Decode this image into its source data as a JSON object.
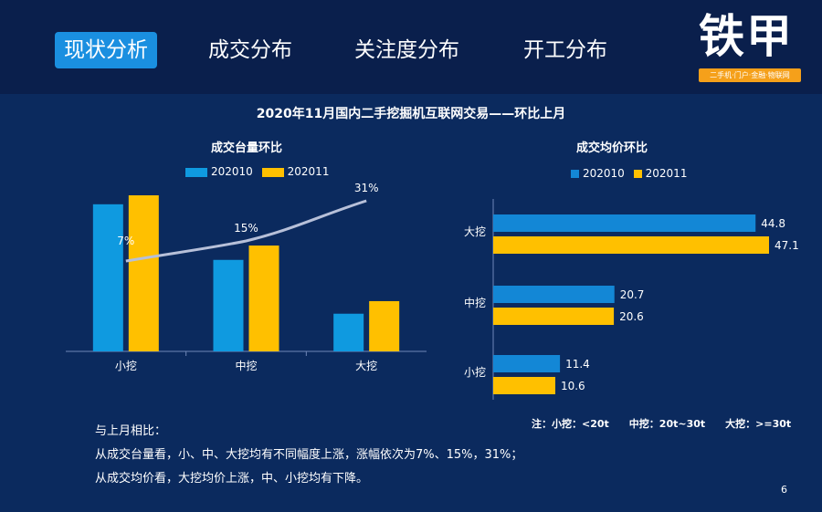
{
  "tabs": [
    {
      "label": "现状分析",
      "active": true
    },
    {
      "label": "成交分布",
      "active": false
    },
    {
      "label": "关注度分布",
      "active": false
    },
    {
      "label": "开工分布",
      "active": false
    }
  ],
  "logo": {
    "text_part1": "铁",
    "text_part2": "甲",
    "tagline": "二手机·门户·金融·物联网"
  },
  "main_title": "2020年11月国内二手挖掘机互联网交易——环比上月",
  "colors": {
    "series_2020010": "#0f9ae0",
    "series_2020011": "#ffc000",
    "line": "#b7c0d9",
    "bar_left_alt": "#1387d6"
  },
  "chart_data": [
    {
      "type": "bar",
      "title": "成交台量环比",
      "categories": [
        "小挖",
        "中挖",
        "大挖"
      ],
      "series": [
        {
          "name": "202010",
          "values": [
            82,
            51,
            21
          ]
        },
        {
          "name": "202011",
          "values": [
            87,
            59,
            28
          ]
        }
      ],
      "line": {
        "values": [
          7,
          15,
          31
        ],
        "labels": [
          "7%",
          "15%",
          "31%"
        ]
      },
      "legend": "top"
    },
    {
      "type": "bar",
      "orientation": "horizontal",
      "title": "成交均价环比",
      "categories": [
        "大挖",
        "中挖",
        "小挖"
      ],
      "series": [
        {
          "name": "202010",
          "values": [
            44.8,
            20.7,
            11.4
          ]
        },
        {
          "name": "202011",
          "values": [
            47.1,
            20.6,
            10.6
          ]
        }
      ],
      "legend": "top"
    }
  ],
  "note": {
    "items": [
      "注：小挖：<20t",
      "中挖：20t~30t",
      "大挖：>=30t"
    ]
  },
  "summary": {
    "line1": "与上月相比：",
    "line2": "从成交台量看，小、中、大挖均有不同幅度上涨，涨幅依次为7%、15%，31%；",
    "line3": "从成交均价看，大挖均价上涨，中、小挖均有下降。"
  },
  "page_number": "6"
}
